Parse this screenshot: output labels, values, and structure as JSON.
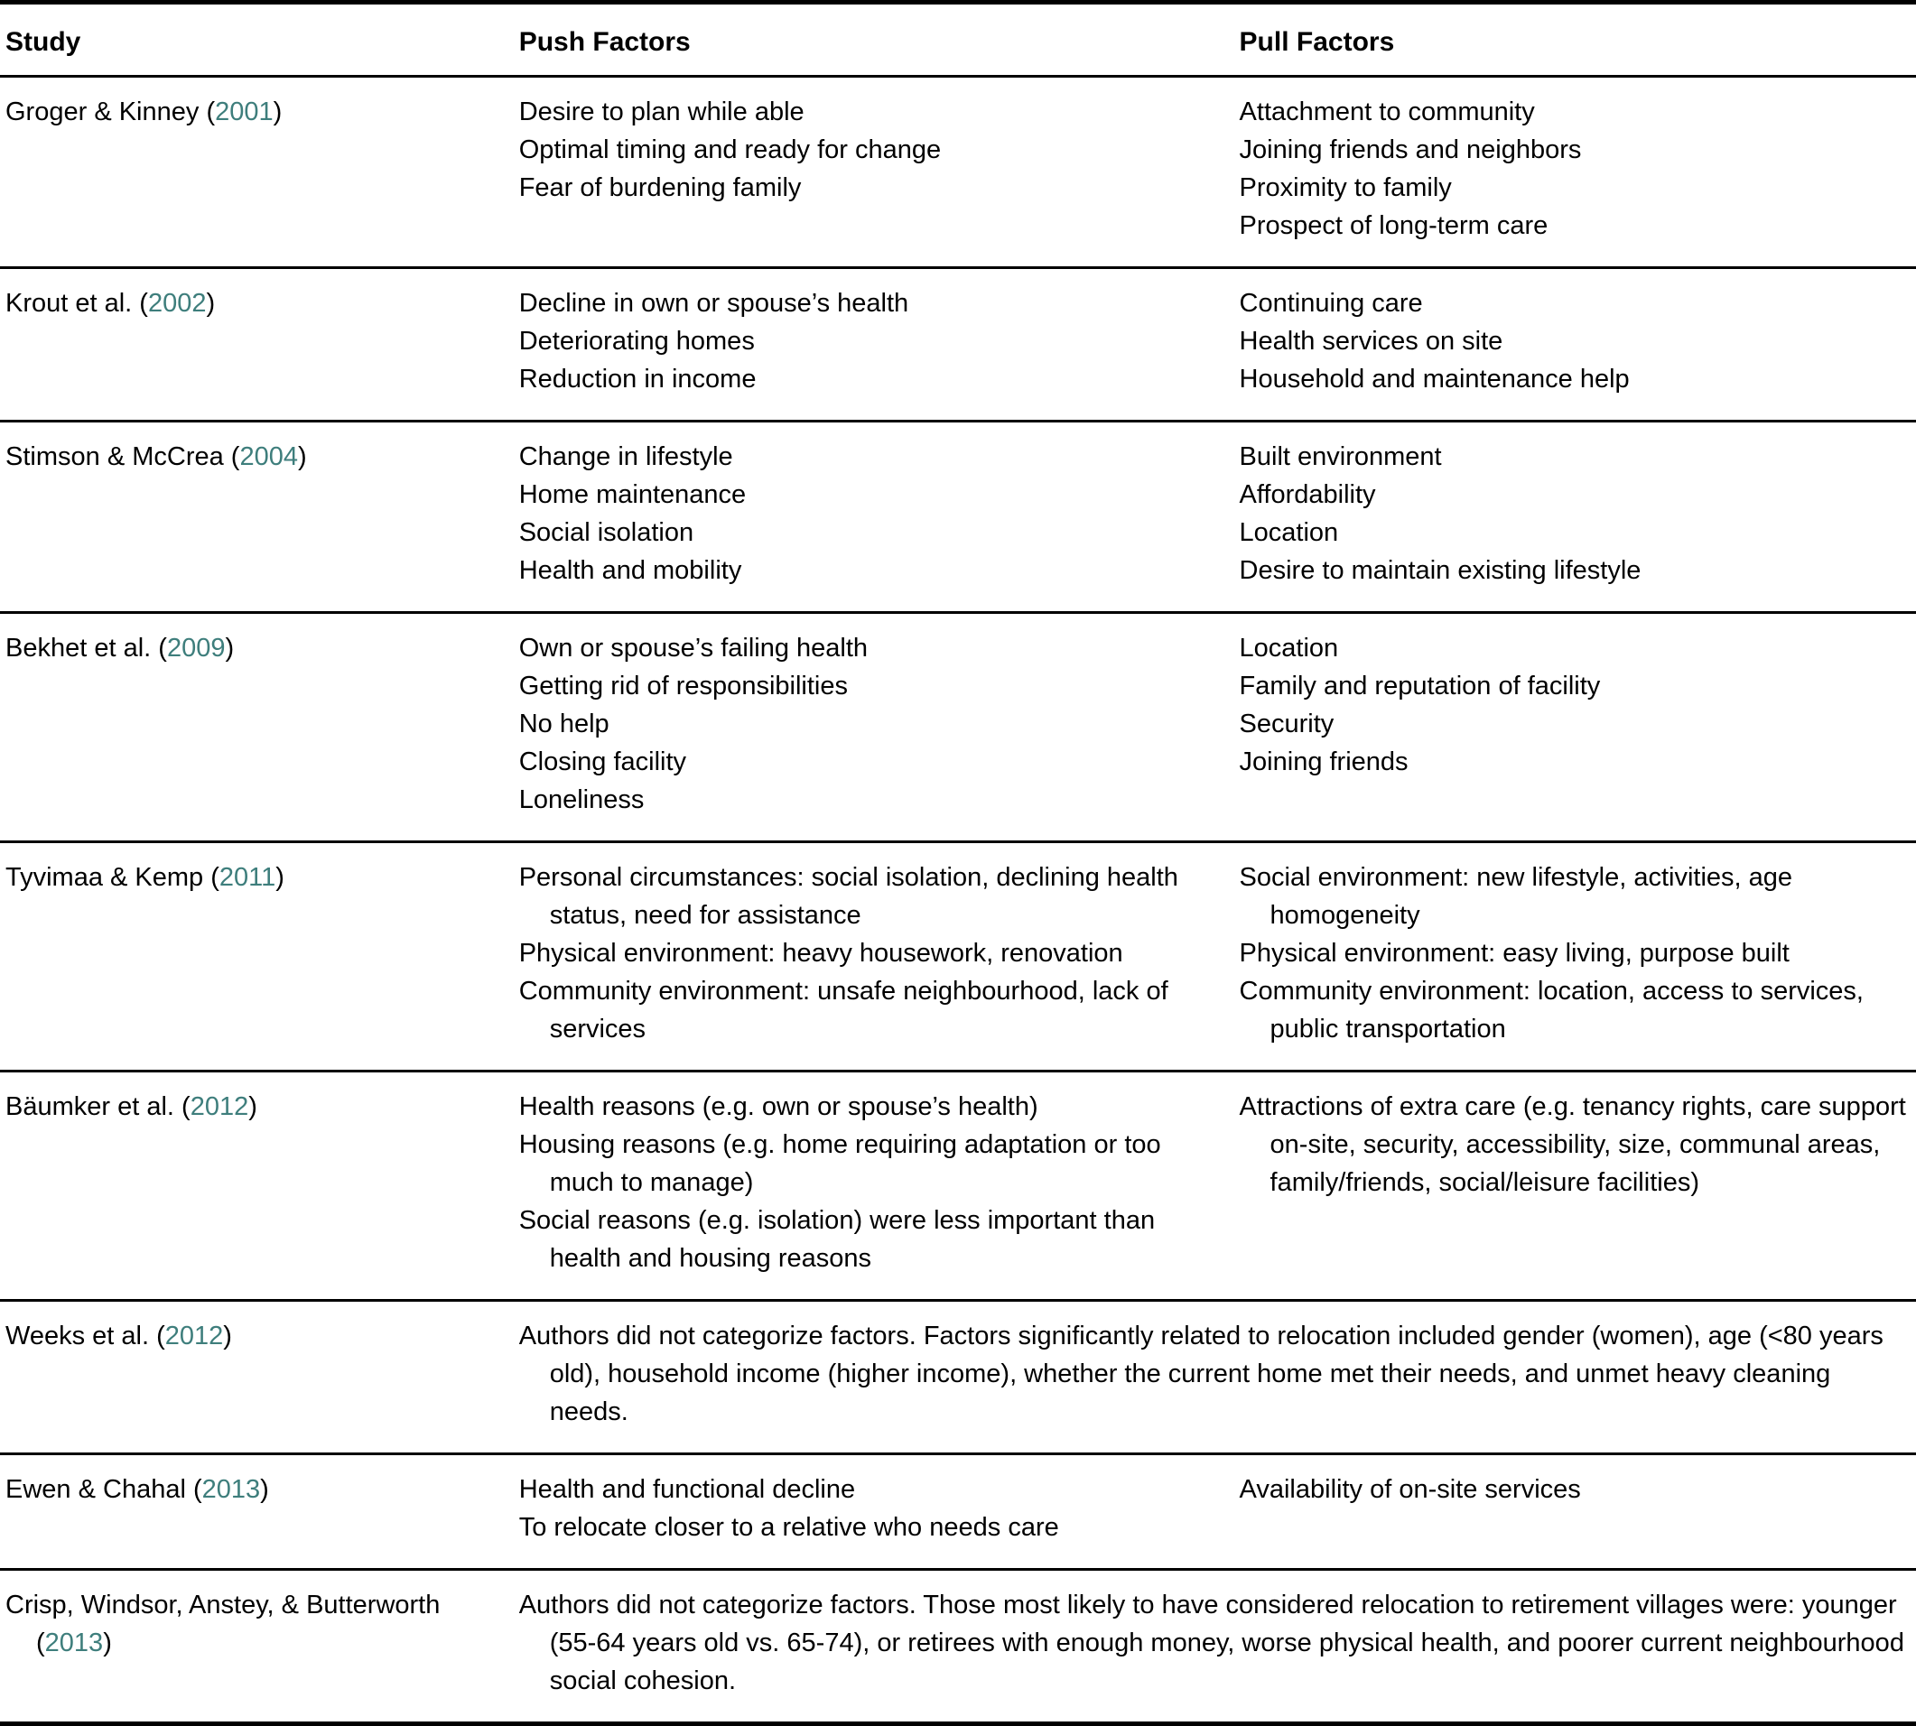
{
  "colors": {
    "text": "#000000",
    "background": "#ffffff",
    "rule": "#000000",
    "year_accent": "#3e7e7c"
  },
  "table": {
    "headers": [
      "Study",
      "Push Factors",
      "Pull Factors"
    ],
    "rows": [
      {
        "study_name": "Groger & Kinney",
        "year": "2001",
        "push": [
          "Desire to plan while able",
          "Optimal timing and ready for change",
          "Fear of burdening family"
        ],
        "pull": [
          "Attachment to community",
          "Joining friends and neighbors",
          "Proximity to family",
          "Prospect of long-term care"
        ]
      },
      {
        "study_name": "Krout et al.",
        "year": "2002",
        "push": [
          "Decline in own or spouse’s health",
          "Deteriorating homes",
          "Reduction in income"
        ],
        "pull": [
          "Continuing care",
          "Health services on site",
          "Household and maintenance help"
        ]
      },
      {
        "study_name": "Stimson & McCrea",
        "year": "2004",
        "push": [
          "Change in lifestyle",
          "Home maintenance",
          "Social isolation",
          "Health and mobility"
        ],
        "pull": [
          "Built environment",
          "Affordability",
          "Location",
          "Desire to maintain existing lifestyle"
        ]
      },
      {
        "study_name": "Bekhet et al.",
        "year": "2009",
        "push": [
          "Own or spouse’s failing health",
          "Getting rid of responsibilities",
          "No help",
          "Closing facility",
          "Loneliness"
        ],
        "pull": [
          "Location",
          "Family and reputation of facility",
          "Security",
          "Joining friends"
        ]
      },
      {
        "study_name": "Tyvimaa & Kemp",
        "year": "2011",
        "push": [
          "Personal circumstances: social isolation, declining health status, need for assistance",
          "Physical environment: heavy housework, renovation",
          "Community environment: unsafe neighbourhood, lack of services"
        ],
        "pull": [
          "Social environment: new lifestyle, activities, age homogeneity",
          "Physical environment: easy living, purpose built",
          "Community environment: location, access to services, public transportation"
        ]
      },
      {
        "study_name": "Bäumker et al.",
        "year": "2012",
        "push": [
          "Health reasons (e.g. own or spouse’s health)",
          "Housing reasons (e.g. home requiring adaptation or too much to manage)",
          "Social reasons (e.g. isolation) were less important than health and housing reasons"
        ],
        "pull": [
          "Attractions of extra care (e.g. tenancy rights, care support on-site, security, accessibility, size, communal areas, family/friends, social/leisure facilities)"
        ]
      },
      {
        "study_name": "Weeks et al.",
        "year": "2012",
        "span_text": "Authors did not categorize factors. Factors significantly related to relocation included gender (women), age (<80 years old), household income (higher income), whether the current home met their needs, and unmet heavy cleaning needs."
      },
      {
        "study_name": "Ewen & Chahal",
        "year": "2013",
        "push": [
          "Health and functional decline",
          "To relocate closer to a relative who needs care"
        ],
        "pull": [
          "Availability of on-site services"
        ]
      },
      {
        "study_name": "Crisp, Windsor, Anstey, & Butterworth",
        "year": "2013",
        "span_text": "Authors did not categorize factors. Those most likely to have considered relocation to retirement villages were: younger (55-64 years old vs. 65-74), or retirees with enough money, worse physical health, and poorer current neighbourhood social cohesion."
      }
    ]
  }
}
